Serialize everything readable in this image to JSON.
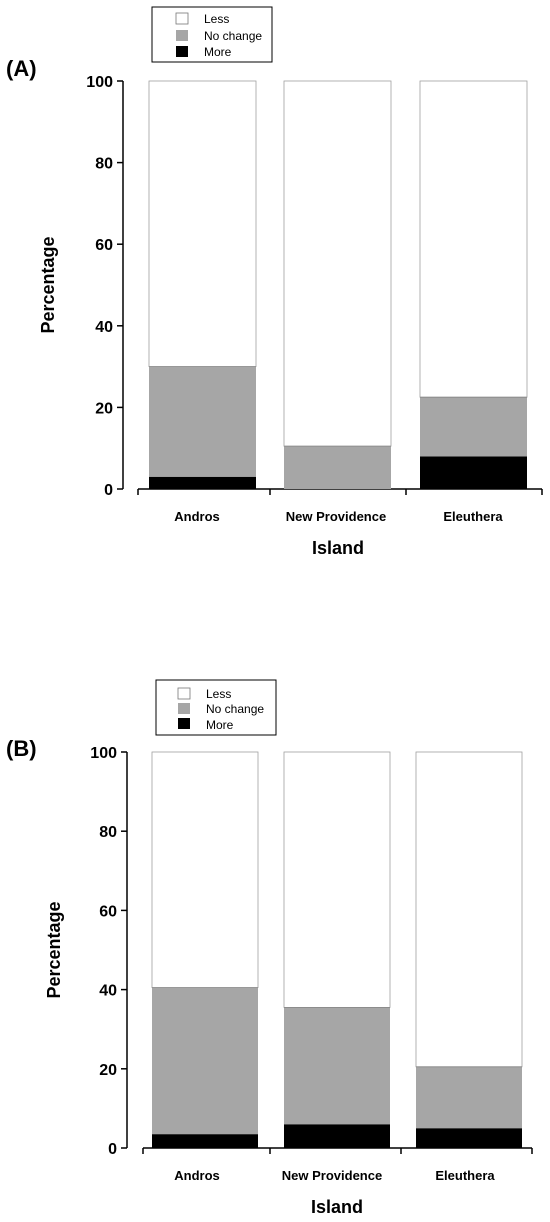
{
  "chart_data": [
    {
      "type": "bar",
      "stacked": true,
      "panel_label": "(A)",
      "categories": [
        "Andros",
        "New Providence",
        "Eleuthera"
      ],
      "series": [
        {
          "name": "More",
          "color": "#000000",
          "values": [
            3,
            0,
            8
          ]
        },
        {
          "name": "No change",
          "color": "#a6a6a6",
          "values": [
            27,
            10.5,
            14.5
          ]
        },
        {
          "name": "Less",
          "color": "#ffffff",
          "values": [
            70,
            89.5,
            77.5
          ]
        }
      ],
      "legend": {
        "position": "top-left",
        "order": [
          "Less",
          "No change",
          "More"
        ]
      },
      "xlabel": "Island",
      "ylabel": "Percentage",
      "ylim": [
        0,
        100
      ],
      "yticks": [
        "0",
        "20",
        "40",
        "60",
        "80",
        "100"
      ],
      "grid": false
    },
    {
      "type": "bar",
      "stacked": true,
      "panel_label": "(B)",
      "categories": [
        "Andros",
        "New Providence",
        "Eleuthera"
      ],
      "series": [
        {
          "name": "More",
          "color": "#000000",
          "values": [
            3.5,
            6,
            5
          ]
        },
        {
          "name": "No change",
          "color": "#a6a6a6",
          "values": [
            37,
            29.5,
            15.5
          ]
        },
        {
          "name": "Less",
          "color": "#ffffff",
          "values": [
            59.5,
            64.5,
            79.5
          ]
        }
      ],
      "legend": {
        "position": "top-left",
        "order": [
          "Less",
          "No change",
          "More"
        ]
      },
      "xlabel": "Island",
      "ylabel": "Percentage",
      "ylim": [
        0,
        100
      ],
      "yticks": [
        "0",
        "20",
        "40",
        "60",
        "80",
        "100"
      ],
      "grid": false
    }
  ]
}
